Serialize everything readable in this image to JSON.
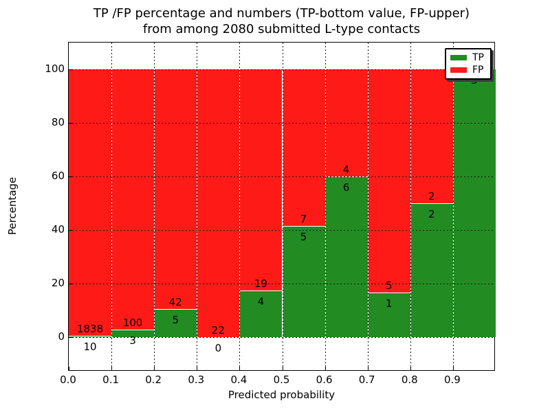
{
  "figure": {
    "background": "#ffffff"
  },
  "chart_data": {
    "type": "bar",
    "stacked": true,
    "normalized": "percent",
    "title_line1": "TP /FP percentage and numbers (TP-bottom value, FP-upper)",
    "title_line2": "from among 2080 submitted L-type contacts",
    "xlabel": "Predicted probability",
    "ylabel": "Percentage",
    "x_tick_labels": [
      "0.0",
      "0.1",
      "0.2",
      "0.3",
      "0.4",
      "0.5",
      "0.6",
      "0.7",
      "0.8",
      "0.9"
    ],
    "y_ticks": [
      0,
      20,
      40,
      60,
      80,
      100
    ],
    "x_range": [
      0.0,
      1.0
    ],
    "ylim_shown": [
      0,
      100
    ],
    "bin_edges": [
      0.0,
      0.1,
      0.2,
      0.3,
      0.4,
      0.5,
      0.6,
      0.7,
      0.8,
      0.9,
      1.0
    ],
    "grid": "dotted",
    "series": [
      {
        "name": "TP",
        "color": "#228b22",
        "values": [
          10,
          3,
          5,
          0,
          4,
          5,
          6,
          1,
          2,
          5
        ]
      },
      {
        "name": "FP",
        "color": "#fe1b17",
        "values": [
          1838,
          100,
          42,
          22,
          19,
          7,
          4,
          5,
          2,
          0
        ]
      }
    ],
    "legend": {
      "position": "upper right",
      "entries": [
        {
          "label": "TP",
          "color": "#228b22"
        },
        {
          "label": "FP",
          "color": "#fe1b17"
        }
      ]
    }
  }
}
